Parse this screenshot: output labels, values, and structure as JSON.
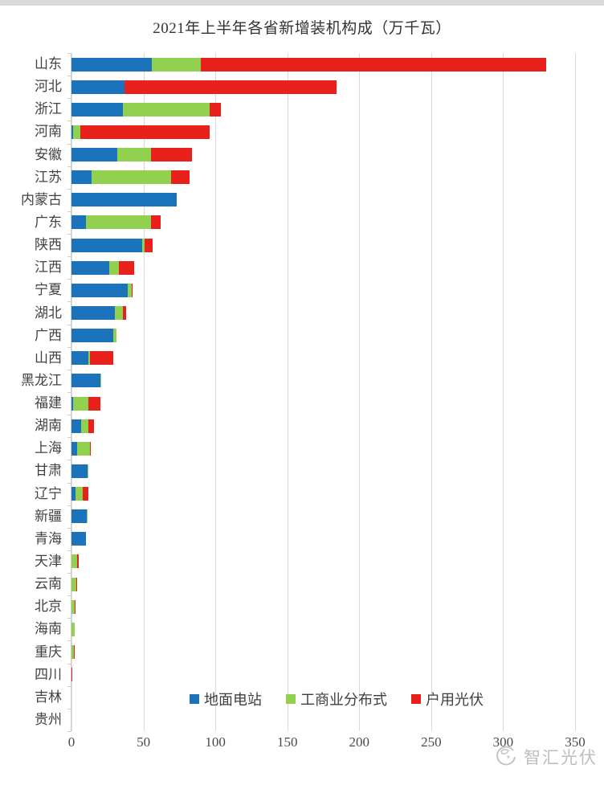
{
  "title": "2021年上半年各省新增装机构成（万千瓦）",
  "watermark": "智汇光伏",
  "chart_data": {
    "type": "bar",
    "orientation": "horizontal",
    "stacked": true,
    "title": "2021年上半年各省新增装机构成（万千瓦）",
    "unit": "万千瓦",
    "xlabel": "",
    "ylabel": "",
    "xlim": [
      0,
      350
    ],
    "x_ticks": [
      0,
      50,
      100,
      150,
      200,
      250,
      300,
      350
    ],
    "grid": true,
    "legend_position": "bottom",
    "categories": [
      "山东",
      "河北",
      "浙江",
      "河南",
      "安徽",
      "江苏",
      "内蒙古",
      "广东",
      "陕西",
      "江西",
      "宁夏",
      "湖北",
      "广西",
      "山西",
      "黑龙江",
      "福建",
      "湖南",
      "上海",
      "甘肃",
      "辽宁",
      "新疆",
      "青海",
      "天津",
      "云南",
      "北京",
      "海南",
      "重庆",
      "四川",
      "吉林",
      "贵州"
    ],
    "series": [
      {
        "name": "地面电站",
        "color": "#1B74BB",
        "values": [
          56,
          37,
          36,
          1,
          32,
          14,
          73,
          10,
          49,
          26,
          39,
          30,
          29,
          12,
          20,
          1,
          6.5,
          4,
          11,
          3,
          10.8,
          10,
          0,
          0,
          0,
          0,
          0,
          0,
          0,
          0
        ]
      },
      {
        "name": "工商业分布式",
        "color": "#92D050",
        "values": [
          34,
          0,
          60,
          5,
          23,
          55,
          0,
          45,
          2,
          7,
          3,
          6,
          2,
          1,
          0.5,
          10.5,
          5.5,
          9,
          1,
          5,
          0.5,
          0,
          4,
          3.5,
          2,
          2.3,
          1.5,
          0,
          0,
          0
        ]
      },
      {
        "name": "户用光伏",
        "color": "#E8211D",
        "values": [
          240,
          147,
          8,
          90,
          29,
          13,
          0,
          7,
          5.5,
          10.5,
          0.7,
          2,
          0,
          16,
          0,
          8.5,
          3.5,
          0.3,
          0,
          3.5,
          0,
          0,
          1.2,
          0.3,
          1,
          0,
          0.2,
          0.8,
          0,
          0
        ]
      }
    ]
  }
}
